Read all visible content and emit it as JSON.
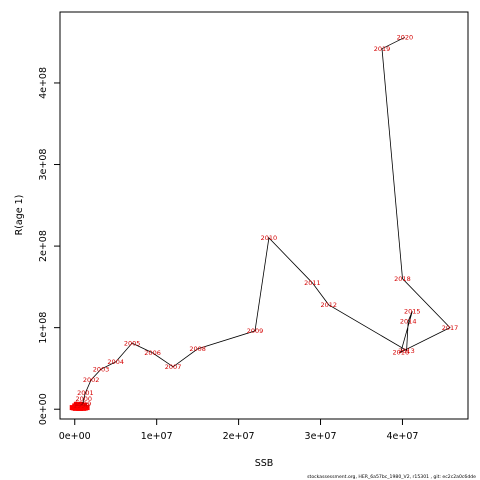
{
  "chart_data": {
    "type": "line",
    "xlabel": "SSB",
    "ylabel": "R(age 1)",
    "xlim": [
      -1800000,
      48000000
    ],
    "ylim": [
      -12000000,
      487000000
    ],
    "x_ticks": [
      {
        "value": 0,
        "label": "0e+00"
      },
      {
        "value": 10000000,
        "label": "1e+07"
      },
      {
        "value": 20000000,
        "label": "2e+07"
      },
      {
        "value": 30000000,
        "label": "3e+07"
      },
      {
        "value": 40000000,
        "label": "4e+07"
      }
    ],
    "y_ticks": [
      {
        "value": 0,
        "label": "0e+00"
      },
      {
        "value": 100000000,
        "label": "1e+08"
      },
      {
        "value": 200000000,
        "label": "2e+08"
      },
      {
        "value": 300000000,
        "label": "3e+08"
      },
      {
        "value": 400000000,
        "label": "4e+08"
      }
    ],
    "early_points": [
      {
        "x": 0,
        "y": 2000000
      },
      {
        "x": 200000,
        "y": 1500000
      },
      {
        "x": 400000,
        "y": 1000000
      },
      {
        "x": 600000,
        "y": 2500000
      },
      {
        "x": 800000,
        "y": 1000000
      },
      {
        "x": 1000000,
        "y": 1500000
      },
      {
        "x": 1200000,
        "y": 2000000
      },
      {
        "x": 500000,
        "y": 6000000
      },
      {
        "x": 900000,
        "y": 5000000
      },
      {
        "x": 300000,
        "y": 4000000
      }
    ],
    "points": [
      {
        "year": "1998",
        "x": 800000,
        "y": 5000000
      },
      {
        "year": "1999",
        "x": 1000000,
        "y": 7000000
      },
      {
        "year": "2000",
        "x": 1100000,
        "y": 13000000
      },
      {
        "year": "2001",
        "x": 1300000,
        "y": 20000000
      },
      {
        "year": "2002",
        "x": 2000000,
        "y": 36000000
      },
      {
        "year": "2003",
        "x": 3200000,
        "y": 49000000
      },
      {
        "year": "2004",
        "x": 5000000,
        "y": 58000000
      },
      {
        "year": "2005",
        "x": 7000000,
        "y": 81000000
      },
      {
        "year": "2006",
        "x": 9500000,
        "y": 69000000
      },
      {
        "year": "2007",
        "x": 12000000,
        "y": 52000000
      },
      {
        "year": "2008",
        "x": 15000000,
        "y": 74000000
      },
      {
        "year": "2009",
        "x": 22000000,
        "y": 96000000
      },
      {
        "year": "2010",
        "x": 23700000,
        "y": 210000000
      },
      {
        "year": "2011",
        "x": 29000000,
        "y": 155000000
      },
      {
        "year": "2012",
        "x": 31000000,
        "y": 128000000
      },
      {
        "year": "2013",
        "x": 40500000,
        "y": 72000000
      },
      {
        "year": "2014",
        "x": 40700000,
        "y": 108000000
      },
      {
        "year": "2015",
        "x": 41200000,
        "y": 120000000
      },
      {
        "year": "2016",
        "x": 39800000,
        "y": 70000000
      },
      {
        "year": "2017",
        "x": 45800000,
        "y": 100000000
      },
      {
        "year": "2018",
        "x": 40000000,
        "y": 160000000
      },
      {
        "year": "2019",
        "x": 37500000,
        "y": 442000000
      },
      {
        "year": "2020",
        "x": 40300000,
        "y": 456000000
      }
    ],
    "footer": "stockassessment.org,  HER_6a57bc_1980_V2,  r15301 ,  git: ec2c2a0c6dde"
  }
}
